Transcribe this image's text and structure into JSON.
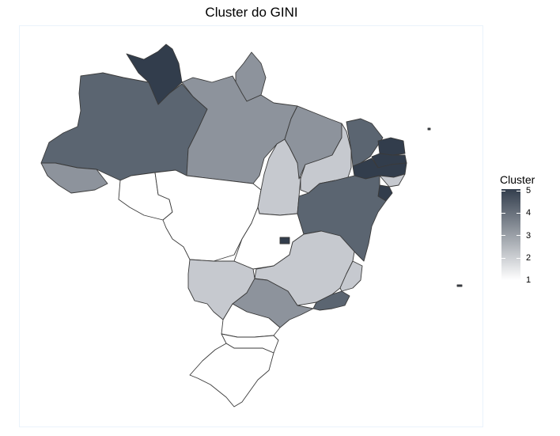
{
  "title": "Cluster do GINI",
  "legend": {
    "title": "Cluster",
    "ticks": [
      "5",
      "4",
      "3",
      "2",
      "1"
    ],
    "colors": {
      "1": "#ffffff",
      "2": "#c6c9cf",
      "3": "#8d939c",
      "4": "#5b6571",
      "5": "#323d4c"
    }
  },
  "map_data": {
    "states": [
      {
        "uf": "AM",
        "cluster": 4
      },
      {
        "uf": "RR",
        "cluster": 5
      },
      {
        "uf": "AP",
        "cluster": 3
      },
      {
        "uf": "PA",
        "cluster": 3
      },
      {
        "uf": "AC",
        "cluster": 3
      },
      {
        "uf": "RO",
        "cluster": 1
      },
      {
        "uf": "MT",
        "cluster": 1
      },
      {
        "uf": "TO",
        "cluster": 2
      },
      {
        "uf": "MA",
        "cluster": 3
      },
      {
        "uf": "PI",
        "cluster": 2
      },
      {
        "uf": "CE",
        "cluster": 4
      },
      {
        "uf": "RN",
        "cluster": 5
      },
      {
        "uf": "PB",
        "cluster": 5
      },
      {
        "uf": "PE",
        "cluster": 5
      },
      {
        "uf": "AL",
        "cluster": 2
      },
      {
        "uf": "SE",
        "cluster": 5
      },
      {
        "uf": "BA",
        "cluster": 4
      },
      {
        "uf": "GO",
        "cluster": 1
      },
      {
        "uf": "DF",
        "cluster": 5
      },
      {
        "uf": "MG",
        "cluster": 2
      },
      {
        "uf": "ES",
        "cluster": 2
      },
      {
        "uf": "RJ",
        "cluster": 4
      },
      {
        "uf": "SP",
        "cluster": 3
      },
      {
        "uf": "MS",
        "cluster": 2
      },
      {
        "uf": "PR",
        "cluster": 1
      },
      {
        "uf": "SC",
        "cluster": 1
      },
      {
        "uf": "RS",
        "cluster": 1
      }
    ]
  }
}
